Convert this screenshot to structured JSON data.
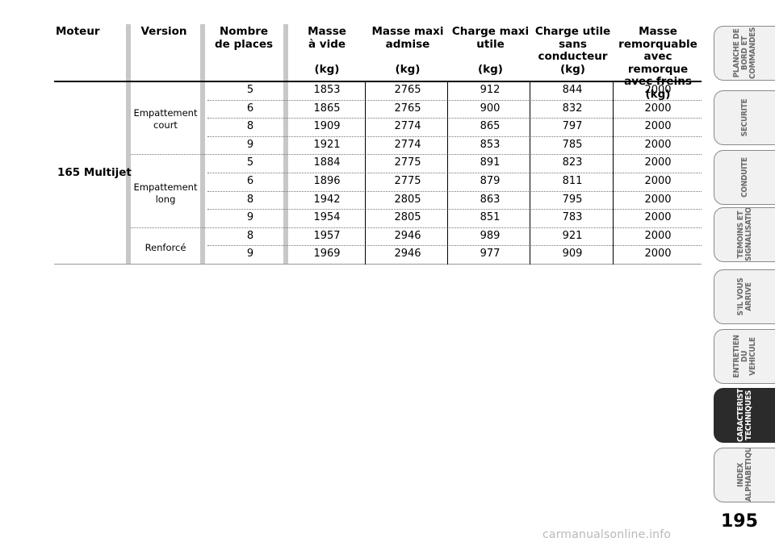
{
  "table": {
    "headers": [
      "Moteur",
      "Version",
      "Nombre\nde places",
      "Masse\nà vide\n\n(kg)",
      "Masse maxi\nadmise\n\n(kg)",
      "Charge maxi\nutile\n\n(kg)",
      "Charge utile\nsans\nconducteur\n(kg)",
      "Masse\nremorquable\navec remorque\navec freins (kg)"
    ],
    "moteur": "165 Multijet",
    "versions": [
      "Empattement\ncourt",
      "Empattement\nlong",
      "Renforcé"
    ],
    "rows": [
      [
        "5",
        "1853",
        "2765",
        "912",
        "844",
        "2000"
      ],
      [
        "6",
        "1865",
        "2765",
        "900",
        "832",
        "2000"
      ],
      [
        "8",
        "1909",
        "2774",
        "865",
        "797",
        "2000"
      ],
      [
        "9",
        "1921",
        "2774",
        "853",
        "785",
        "2000"
      ],
      [
        "5",
        "1884",
        "2775",
        "891",
        "823",
        "2000"
      ],
      [
        "6",
        "1896",
        "2775",
        "879",
        "811",
        "2000"
      ],
      [
        "8",
        "1942",
        "2805",
        "863",
        "795",
        "2000"
      ],
      [
        "9",
        "1954",
        "2805",
        "851",
        "783",
        "2000"
      ],
      [
        "8",
        "1957",
        "2946",
        "989",
        "921",
        "2000"
      ],
      [
        "9",
        "1969",
        "2946",
        "977",
        "909",
        "2000"
      ]
    ]
  },
  "side_tabs": [
    {
      "label": "PLANCHE DE\nBORD ET\nCOMMANDES",
      "active": false
    },
    {
      "label": "SECURITE",
      "active": false
    },
    {
      "label": "CONDUITE",
      "active": false
    },
    {
      "label": "TEMOINS ET\nSIGNALISATIONS",
      "active": false
    },
    {
      "label": "S'IL VOUS\nARRIVE",
      "active": false
    },
    {
      "label": "ENTRETIEN DU\nVEHICULE",
      "active": false
    },
    {
      "label": "CARACTERISTIQUES\nTECHNIQUES",
      "active": true
    },
    {
      "label": "INDEX\nALPHABETIQUE",
      "active": false
    }
  ],
  "page_number": "195",
  "watermark": "carmanualsonline.info"
}
